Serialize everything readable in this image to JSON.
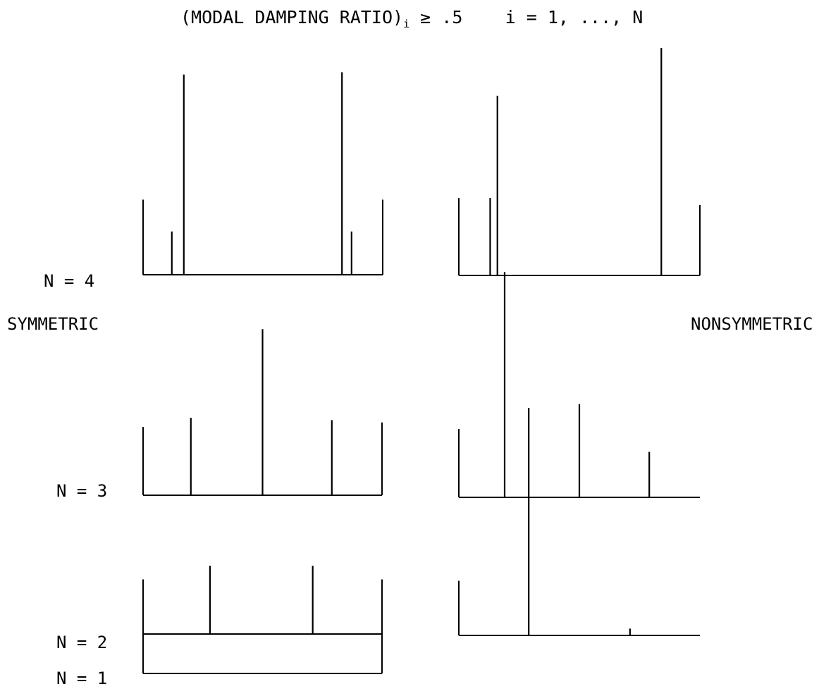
{
  "title": {
    "prefix": "(MODAL DAMPING RATIO)",
    "subscript": "i",
    "relation": "≥ .5",
    "range": "i = 1, ..., N"
  },
  "side_labels": {
    "left": "SYMMETRIC",
    "right": "NONSYMMETRIC"
  },
  "row_labels": [
    "N = 4",
    "N = 3",
    "N = 2",
    "N = 1"
  ],
  "panels": {
    "symmetric": [
      {
        "n": 4,
        "ends": [
          0.33,
          0.33
        ],
        "spikes": [
          [
            0.12,
            0.19
          ],
          [
            0.17,
            0.88
          ],
          [
            0.83,
            0.89
          ],
          [
            0.87,
            0.19
          ]
        ]
      },
      {
        "n": 3,
        "ends": [
          0.3,
          0.32
        ],
        "spikes": [
          [
            0.2,
            0.34
          ],
          [
            0.5,
            0.73
          ],
          [
            0.79,
            0.33
          ]
        ]
      },
      {
        "n": 2,
        "ends": [
          0.24,
          0.24
        ],
        "spikes": [
          [
            0.28,
            0.3
          ],
          [
            0.71,
            0.3
          ]
        ]
      },
      {
        "n": 1,
        "ends": [
          0.22,
          0.22
        ],
        "spikes": []
      }
    ],
    "nonsymmetric": [
      {
        "n": 4,
        "ends": [
          0.34,
          0.31
        ],
        "spikes": [
          [
            0.13,
            0.34
          ],
          [
            0.16,
            0.79
          ],
          [
            0.84,
            1.0
          ]
        ]
      },
      {
        "n": 3,
        "ends": [
          0.3,
          0.0
        ],
        "spikes": [
          [
            0.19,
            0.99
          ],
          [
            0.5,
            0.41
          ],
          [
            0.79,
            0.2
          ]
        ]
      },
      {
        "n": 2,
        "ends": [
          0.24,
          0.0
        ],
        "spikes": [
          [
            0.29,
            1.0
          ],
          [
            0.71,
            0.03
          ]
        ]
      }
    ]
  }
}
